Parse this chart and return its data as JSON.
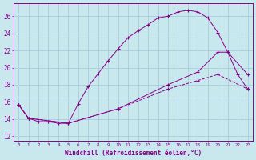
{
  "background_color": "#c8e8ee",
  "grid_color": "#a0c8d8",
  "line_color": "#880088",
  "xlabel": "Windchill (Refroidissement éolien,°C)",
  "yticks": [
    12,
    14,
    16,
    18,
    20,
    22,
    24,
    26
  ],
  "xlim": [
    -0.5,
    23.5
  ],
  "ylim": [
    11.5,
    27.5
  ],
  "xticks": [
    0,
    1,
    2,
    3,
    4,
    5,
    6,
    7,
    8,
    9,
    10,
    11,
    12,
    13,
    14,
    15,
    16,
    17,
    18,
    19,
    20,
    21,
    22,
    23
  ],
  "curve1_x": [
    0,
    1,
    2,
    3,
    4,
    5,
    6,
    7,
    8,
    9,
    10,
    11,
    12,
    13,
    14,
    15,
    16,
    17,
    18,
    19,
    20,
    21,
    22,
    23
  ],
  "curve1_y": [
    15.7,
    14.1,
    13.7,
    13.7,
    13.5,
    13.5,
    15.8,
    17.8,
    19.3,
    20.8,
    22.2,
    23.5,
    24.3,
    25.0,
    25.8,
    26.0,
    26.5,
    26.7,
    26.5,
    25.8,
    24.1,
    21.8,
    19.2,
    17.5
  ],
  "curve2_x": [
    0,
    1,
    5,
    10,
    15,
    18,
    20,
    21,
    23
  ],
  "curve2_y": [
    15.7,
    14.1,
    13.5,
    15.2,
    18.0,
    19.5,
    21.8,
    21.8,
    19.2
  ],
  "curve3_x": [
    0,
    1,
    5,
    10,
    15,
    18,
    20,
    23
  ],
  "curve3_y": [
    15.7,
    14.1,
    13.5,
    15.2,
    17.5,
    18.5,
    19.2,
    17.5
  ]
}
